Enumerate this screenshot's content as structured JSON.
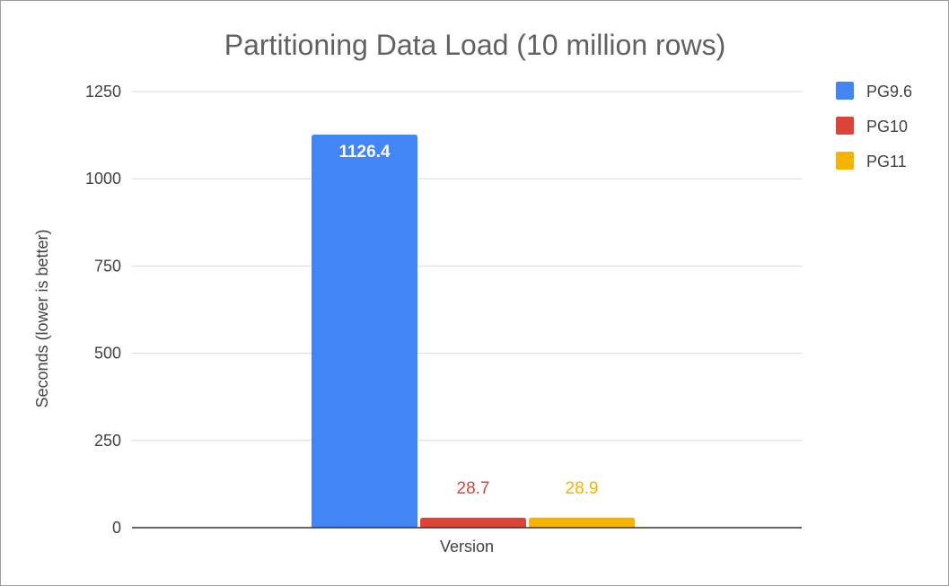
{
  "chart_data": {
    "type": "bar",
    "title": "Partitioning Data Load (10 million rows)",
    "xlabel": "Version",
    "ylabel": "Seconds (lower is better)",
    "categories": [
      ""
    ],
    "ylim": [
      0,
      1250
    ],
    "yticks": [
      0,
      250,
      500,
      750,
      1000,
      1250
    ],
    "grid": true,
    "legend_position": "right",
    "series": [
      {
        "name": "PG9.6",
        "values": [
          1126.4
        ],
        "color": "#4285f4",
        "data_label": "1126.4",
        "label_color": "#ffffff",
        "label_inside": true
      },
      {
        "name": "PG10",
        "values": [
          28.7
        ],
        "color": "#db4437",
        "data_label": "28.7",
        "label_color": "#db4437",
        "label_inside": false
      },
      {
        "name": "PG11",
        "values": [
          28.9
        ],
        "color": "#f4b400",
        "data_label": "28.9",
        "label_color": "#f4b400",
        "label_inside": false
      }
    ]
  }
}
